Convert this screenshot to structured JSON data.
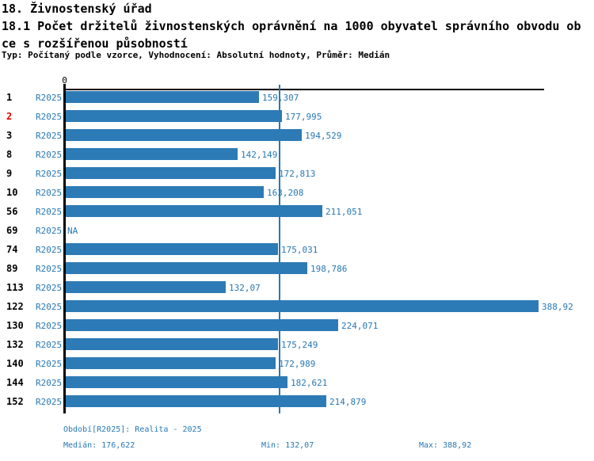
{
  "title": {
    "line1": "18. Živnostenský úřad",
    "line2": "18.1 Počet držitelů živnostenských oprávnění na 1000 obyvatel správního obvodu ob",
    "line3": "ce s rozšířenou působností",
    "meta": "Typ: Počítaný podle vzorce, Vyhodnocení: Absolutní hodnoty, Průměr: Medián"
  },
  "chart_data": {
    "type": "bar",
    "orientation": "horizontal",
    "axis_zero_label": "0",
    "xlim": [
      0,
      393
    ],
    "grid": false,
    "median_value": 176.622,
    "bar_color": "#2d7bb6",
    "median_line_color": "#2878b4",
    "accent_text_color": "#2878b4",
    "highlight_color": "#ee0000",
    "series_name": "R2025",
    "rows": [
      {
        "num": "1",
        "period": "R2025",
        "value": 159.307,
        "display": "159,307",
        "highlight": false
      },
      {
        "num": "2",
        "period": "R2025",
        "value": 177.995,
        "display": "177,995",
        "highlight": true
      },
      {
        "num": "3",
        "period": "R2025",
        "value": 194.529,
        "display": "194,529",
        "highlight": false
      },
      {
        "num": "8",
        "period": "R2025",
        "value": 142.149,
        "display": "142,149",
        "highlight": false
      },
      {
        "num": "9",
        "period": "R2025",
        "value": 172.813,
        "display": "172,813",
        "highlight": false
      },
      {
        "num": "10",
        "period": "R2025",
        "value": 163.208,
        "display": "163,208",
        "highlight": false
      },
      {
        "num": "56",
        "period": "R2025",
        "value": 211.051,
        "display": "211,051",
        "highlight": false
      },
      {
        "num": "69",
        "period": "R2025",
        "value": null,
        "display": "NA",
        "highlight": false
      },
      {
        "num": "74",
        "period": "R2025",
        "value": 175.031,
        "display": "175,031",
        "highlight": false
      },
      {
        "num": "89",
        "period": "R2025",
        "value": 198.786,
        "display": "198,786",
        "highlight": false
      },
      {
        "num": "113",
        "period": "R2025",
        "value": 132.07,
        "display": "132,07",
        "highlight": false
      },
      {
        "num": "122",
        "period": "R2025",
        "value": 388.92,
        "display": "388,92",
        "highlight": false
      },
      {
        "num": "130",
        "period": "R2025",
        "value": 224.071,
        "display": "224,071",
        "highlight": false
      },
      {
        "num": "132",
        "period": "R2025",
        "value": 175.249,
        "display": "175,249",
        "highlight": false
      },
      {
        "num": "140",
        "period": "R2025",
        "value": 172.989,
        "display": "172,989",
        "highlight": false
      },
      {
        "num": "144",
        "period": "R2025",
        "value": 182.621,
        "display": "182,621",
        "highlight": false
      },
      {
        "num": "152",
        "period": "R2025",
        "value": 214.879,
        "display": "214,879",
        "highlight": false
      }
    ]
  },
  "footer": {
    "period": "Období[R2025]: Realita - 2025",
    "median": "Medián: 176,622",
    "min": "Min: 132,07",
    "max": "Max: 388,92"
  }
}
